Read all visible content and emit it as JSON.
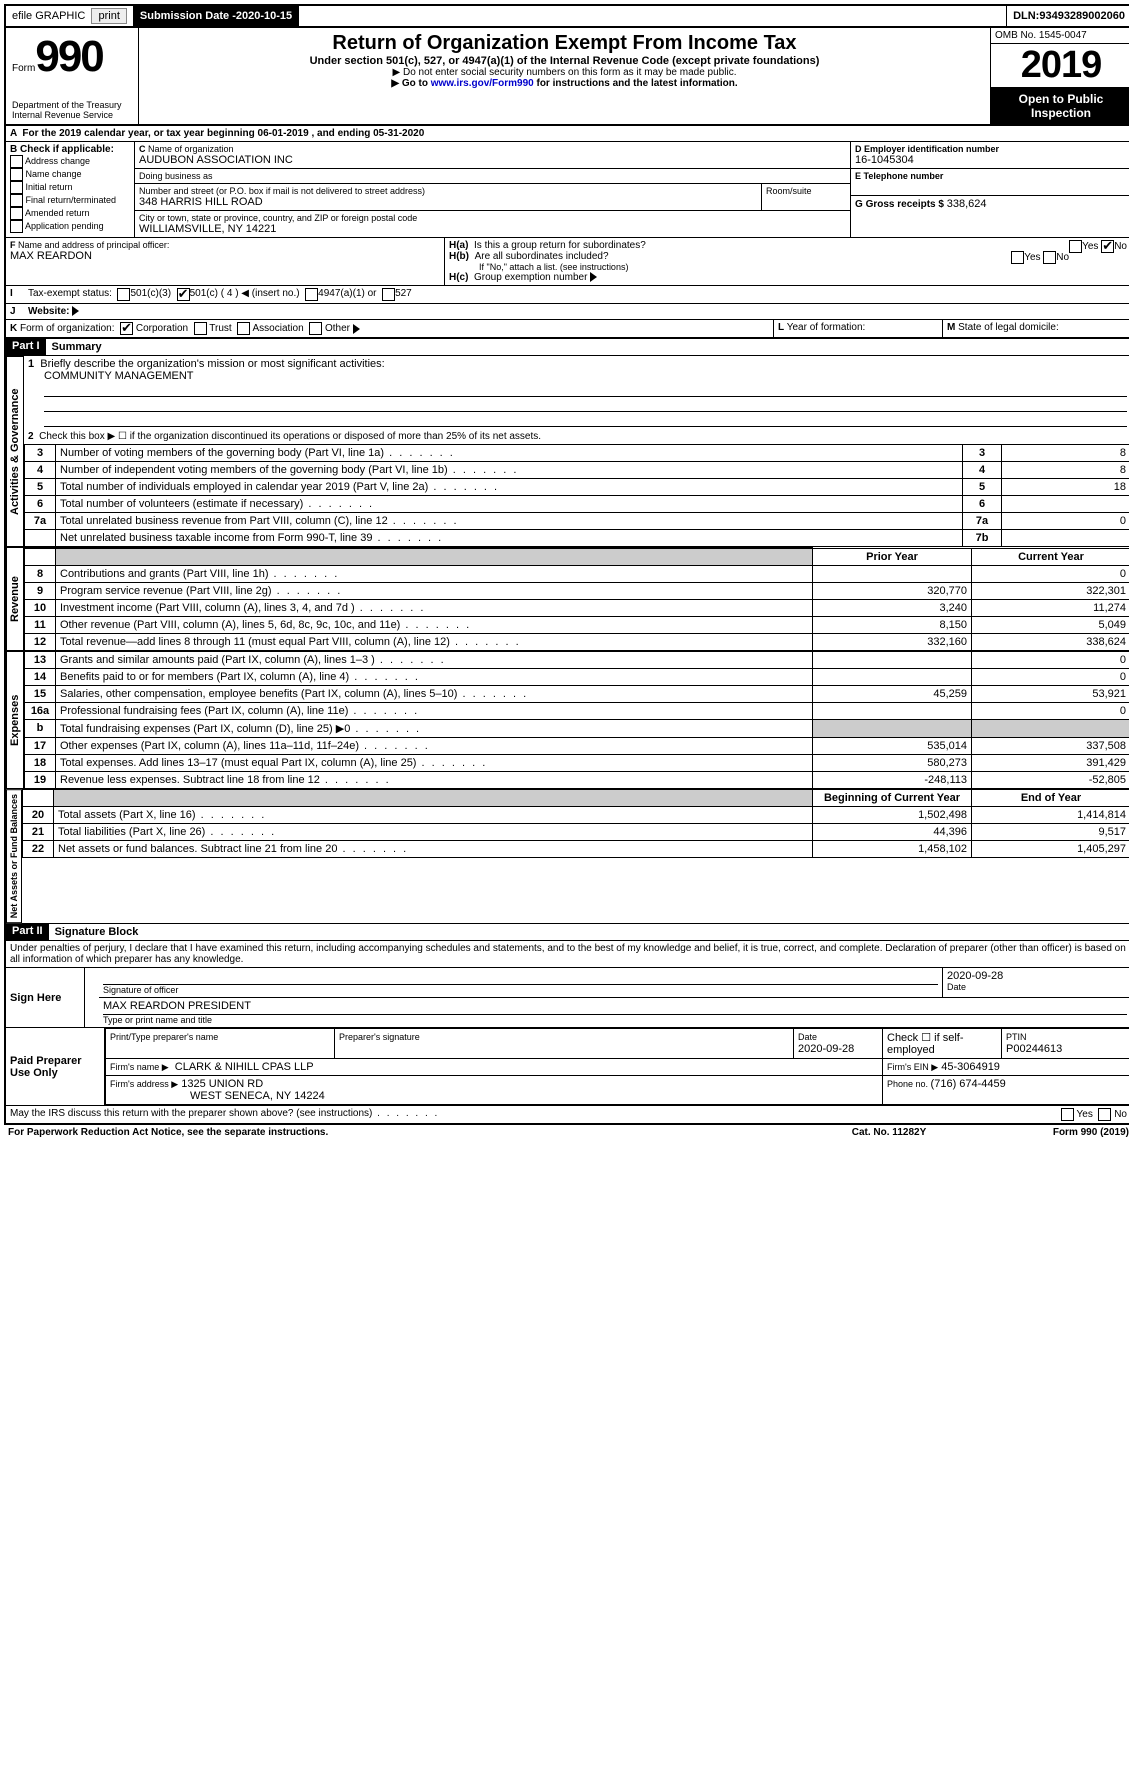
{
  "topbar": {
    "efile": "efile GRAPHIC",
    "print": "print",
    "subdate_label": "Submission Date - ",
    "subdate": "2020-10-15",
    "dln_label": "DLN: ",
    "dln": "93493289002060"
  },
  "header": {
    "form_label": "Form",
    "form_no": "990",
    "title": "Return of Organization Exempt From Income Tax",
    "undersection": "Under section 501(c), 527, or 4947(a)(1) of the Internal Revenue Code (except private foundations)",
    "donot": "Do not enter social security numbers on this form as it may be made public.",
    "goto_pre": "Go to ",
    "goto_link": "www.irs.gov/Form990",
    "goto_post": " for instructions and the latest information.",
    "dept1": "Department of the Treasury",
    "dept2": "Internal Revenue Service",
    "omb_label": "OMB No. ",
    "omb": "1545-0047",
    "year": "2019",
    "open1": "Open to Public",
    "open2": "Inspection"
  },
  "A": {
    "text_pre": "For the 2019 calendar year, or tax year beginning ",
    "begin": "06-01-2019",
    "mid": " , and ending ",
    "end": "05-31-2020"
  },
  "B": {
    "label": "Check if applicable:",
    "items": [
      "Address change",
      "Name change",
      "Initial return",
      "Final return/terminated",
      "Amended return",
      "Application pending"
    ]
  },
  "C": {
    "name_label": "Name of organization",
    "name": "AUDUBON ASSOCIATION INC",
    "dba_label": "Doing business as",
    "dba": "",
    "street_label": "Number and street (or P.O. box if mail is not delivered to street address)",
    "room_label": "Room/suite",
    "street": "348 HARRIS HILL ROAD",
    "city_label": "City or town, state or province, country, and ZIP or foreign postal code",
    "city": "WILLIAMSVILLE, NY  14221"
  },
  "D": {
    "label": "Employer identification number",
    "value": "16-1045304"
  },
  "E": {
    "label": "Telephone number",
    "value": ""
  },
  "G": {
    "label": "Gross receipts $ ",
    "value": "338,624"
  },
  "F": {
    "label": "Name and address of principal officer:",
    "value": "MAX REARDON"
  },
  "H": {
    "a": "Is this a group return for subordinates?",
    "b": "Are all subordinates included?",
    "b_note": "If \"No,\" attach a list. (see instructions)",
    "c": "Group exemption number",
    "yes": "Yes",
    "no": "No"
  },
  "I": {
    "label": "Tax-exempt status:",
    "opts": [
      "501(c)(3)",
      "501(c) ( 4 ) ◀ (insert no.)",
      "4947(a)(1) or",
      "527"
    ]
  },
  "J": {
    "label": "Website:",
    "value": ""
  },
  "K": {
    "label": "Form of organization:",
    "opts": [
      "Corporation",
      "Trust",
      "Association",
      "Other"
    ]
  },
  "L": {
    "label": "Year of formation:",
    "value": ""
  },
  "M": {
    "label": "State of legal domicile:",
    "value": ""
  },
  "part1": {
    "bar": "Part I",
    "title": "Summary",
    "q1_label": "Briefly describe the organization's mission or most significant activities:",
    "q1_val": "COMMUNITY MANAGEMENT",
    "q2": "Check this box ▶ ☐  if the organization discontinued its operations or disposed of more than 25% of its net assets.",
    "vlabels": {
      "gov": "Activities & Governance",
      "rev": "Revenue",
      "exp": "Expenses",
      "net": "Net Assets or Fund Balances"
    },
    "col_prior": "Prior Year",
    "col_current": "Current Year",
    "col_beg": "Beginning of Current Year",
    "col_end": "End of Year",
    "lines_gov": [
      {
        "n": "3",
        "t": "Number of voting members of the governing body (Part VI, line 1a)",
        "box": "3",
        "v": "8"
      },
      {
        "n": "4",
        "t": "Number of independent voting members of the governing body (Part VI, line 1b)",
        "box": "4",
        "v": "8"
      },
      {
        "n": "5",
        "t": "Total number of individuals employed in calendar year 2019 (Part V, line 2a)",
        "box": "5",
        "v": "18"
      },
      {
        "n": "6",
        "t": "Total number of volunteers (estimate if necessary)",
        "box": "6",
        "v": ""
      },
      {
        "n": "7a",
        "t": "Total unrelated business revenue from Part VIII, column (C), line 12",
        "box": "7a",
        "v": "0"
      },
      {
        "n": "",
        "t": "Net unrelated business taxable income from Form 990-T, line 39",
        "box": "7b",
        "v": ""
      }
    ],
    "lines_rev": [
      {
        "n": "8",
        "t": "Contributions and grants (Part VIII, line 1h)",
        "p": "",
        "c": "0"
      },
      {
        "n": "9",
        "t": "Program service revenue (Part VIII, line 2g)",
        "p": "320,770",
        "c": "322,301"
      },
      {
        "n": "10",
        "t": "Investment income (Part VIII, column (A), lines 3, 4, and 7d )",
        "p": "3,240",
        "c": "11,274"
      },
      {
        "n": "11",
        "t": "Other revenue (Part VIII, column (A), lines 5, 6d, 8c, 9c, 10c, and 11e)",
        "p": "8,150",
        "c": "5,049"
      },
      {
        "n": "12",
        "t": "Total revenue—add lines 8 through 11 (must equal Part VIII, column (A), line 12)",
        "p": "332,160",
        "c": "338,624"
      }
    ],
    "lines_exp": [
      {
        "n": "13",
        "t": "Grants and similar amounts paid (Part IX, column (A), lines 1–3 )",
        "p": "",
        "c": "0"
      },
      {
        "n": "14",
        "t": "Benefits paid to or for members (Part IX, column (A), line 4)",
        "p": "",
        "c": "0"
      },
      {
        "n": "15",
        "t": "Salaries, other compensation, employee benefits (Part IX, column (A), lines 5–10)",
        "p": "45,259",
        "c": "53,921"
      },
      {
        "n": "16a",
        "t": "Professional fundraising fees (Part IX, column (A), line 11e)",
        "p": "",
        "c": "0"
      },
      {
        "n": "b",
        "t": "Total fundraising expenses (Part IX, column (D), line 25) ▶0",
        "p": "GRAY",
        "c": "GRAY"
      },
      {
        "n": "17",
        "t": "Other expenses (Part IX, column (A), lines 11a–11d, 11f–24e)",
        "p": "535,014",
        "c": "337,508"
      },
      {
        "n": "18",
        "t": "Total expenses. Add lines 13–17 (must equal Part IX, column (A), line 25)",
        "p": "580,273",
        "c": "391,429"
      },
      {
        "n": "19",
        "t": "Revenue less expenses. Subtract line 18 from line 12",
        "p": "-248,113",
        "c": "-52,805"
      }
    ],
    "lines_net": [
      {
        "n": "20",
        "t": "Total assets (Part X, line 16)",
        "p": "1,502,498",
        "c": "1,414,814"
      },
      {
        "n": "21",
        "t": "Total liabilities (Part X, line 26)",
        "p": "44,396",
        "c": "9,517"
      },
      {
        "n": "22",
        "t": "Net assets or fund balances. Subtract line 21 from line 20",
        "p": "1,458,102",
        "c": "1,405,297"
      }
    ]
  },
  "part2": {
    "bar": "Part II",
    "title": "Signature Block",
    "perjury": "Under penalties of perjury, I declare that I have examined this return, including accompanying schedules and statements, and to the best of my knowledge and belief, it is true, correct, and complete. Declaration of preparer (other than officer) is based on all information of which preparer has any knowledge.",
    "sign_here": "Sign Here",
    "sig_officer": "Signature of officer",
    "date": "Date",
    "sig_date": "2020-09-28",
    "name_title": "MAX REARDON  PRESIDENT",
    "name_title_label": "Type or print name and title",
    "paid": "Paid Preparer Use Only",
    "prep_name_label": "Print/Type preparer's name",
    "prep_sig_label": "Preparer's signature",
    "prep_date": "2020-09-28",
    "check_self": "Check ☐ if self-employed",
    "ptin_label": "PTIN",
    "ptin": "P00244613",
    "firm_name_label": "Firm's name   ▶",
    "firm_name": "CLARK & NIHILL CPAS LLP",
    "firm_ein_label": "Firm's EIN ▶",
    "firm_ein": "45-3064919",
    "firm_addr_label": "Firm's address ▶",
    "firm_addr1": "1325 UNION RD",
    "firm_addr2": "WEST SENECA, NY  14224",
    "phone_label": "Phone no. ",
    "phone": "(716) 674-4459",
    "discuss": "May the IRS discuss this return with the preparer shown above? (see instructions)",
    "paperwork": "For Paperwork Reduction Act Notice, see the separate instructions.",
    "catno": "Cat. No. 11282Y",
    "formfoot": "Form 990 (2019)"
  }
}
